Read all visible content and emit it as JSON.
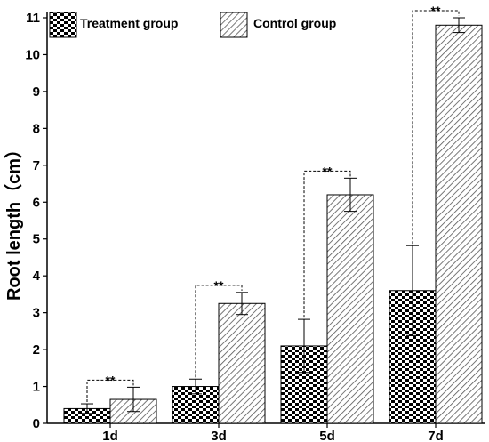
{
  "chart_data": {
    "type": "bar",
    "title": "",
    "xlabel": "",
    "ylabel": "Root length（cm）",
    "categories": [
      "1d",
      "3d",
      "5d",
      "7d"
    ],
    "ylim": [
      0,
      11
    ],
    "yticks": [
      0,
      1,
      2,
      3,
      4,
      5,
      6,
      7,
      8,
      9,
      10,
      11
    ],
    "grid": false,
    "legend_position": "top",
    "series": [
      {
        "name": "Treatment group",
        "pattern": "checkerboard",
        "values": [
          0.4,
          1.0,
          2.1,
          3.6
        ],
        "errors": [
          0.13,
          0.2,
          0.72,
          1.22
        ]
      },
      {
        "name": "Control group",
        "pattern": "diagonal-hatch",
        "values": [
          0.65,
          3.25,
          6.2,
          10.8
        ],
        "errors": [
          0.33,
          0.3,
          0.45,
          0.2
        ]
      }
    ],
    "annotations": [
      "**",
      "**",
      "**",
      "**"
    ]
  }
}
